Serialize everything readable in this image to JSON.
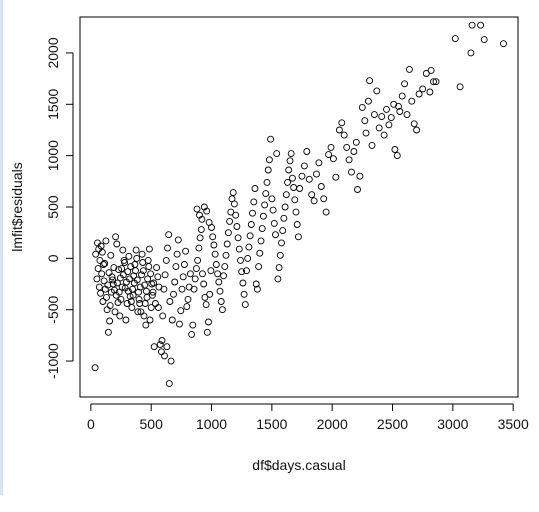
{
  "chart_data": {
    "type": "scatter",
    "title": "",
    "xlabel": "df$days.casual",
    "ylabel": "lmfit$residuals",
    "xlim": [
      -90,
      3540
    ],
    "ylim": [
      -1350,
      2350
    ],
    "xticks": [
      0,
      500,
      1000,
      1500,
      2000,
      2500,
      3000,
      3500
    ],
    "yticks": [
      -1000,
      -500,
      0,
      500,
      1000,
      1500,
      2000
    ],
    "marker": "open-circle",
    "grid": false,
    "points": [
      [
        35,
        -1065
      ],
      [
        50,
        -200
      ],
      [
        60,
        -100
      ],
      [
        70,
        -280
      ],
      [
        80,
        -340
      ],
      [
        90,
        -150
      ],
      [
        100,
        -420
      ],
      [
        110,
        -220
      ],
      [
        115,
        -50
      ],
      [
        120,
        -300
      ],
      [
        130,
        -380
      ],
      [
        140,
        -260
      ],
      [
        150,
        -140
      ],
      [
        160,
        -460
      ],
      [
        170,
        -330
      ],
      [
        180,
        -210
      ],
      [
        190,
        -90
      ],
      [
        200,
        -520
      ],
      [
        210,
        -360
      ],
      [
        220,
        -240
      ],
      [
        230,
        -110
      ],
      [
        240,
        -560
      ],
      [
        250,
        -400
      ],
      [
        260,
        -280
      ],
      [
        270,
        -160
      ],
      [
        280,
        -40
      ],
      [
        290,
        -600
      ],
      [
        300,
        -440
      ],
      [
        310,
        -320
      ],
      [
        320,
        -200
      ],
      [
        330,
        -80
      ],
      [
        340,
        -480
      ],
      [
        350,
        -360
      ],
      [
        360,
        -240
      ],
      [
        370,
        -120
      ],
      [
        380,
        0
      ],
      [
        390,
        -520
      ],
      [
        400,
        -400
      ],
      [
        410,
        -280
      ],
      [
        420,
        -160
      ],
      [
        430,
        -40
      ],
      [
        440,
        -560
      ],
      [
        450,
        -440
      ],
      [
        460,
        -320
      ],
      [
        470,
        -200
      ],
      [
        480,
        -80
      ],
      [
        490,
        -600
      ],
      [
        500,
        -480
      ],
      [
        510,
        -360
      ],
      [
        520,
        -240
      ],
      [
        40,
        40
      ],
      [
        55,
        150
      ],
      [
        65,
        90
      ],
      [
        75,
        -20
      ],
      [
        85,
        120
      ],
      [
        95,
        60
      ],
      [
        105,
        -60
      ],
      [
        125,
        170
      ],
      [
        135,
        -500
      ],
      [
        145,
        -720
      ],
      [
        155,
        -610
      ],
      [
        165,
        30
      ],
      [
        175,
        -180
      ],
      [
        185,
        -250
      ],
      [
        195,
        -310
      ],
      [
        205,
        210
      ],
      [
        215,
        140
      ],
      [
        225,
        -430
      ],
      [
        235,
        -330
      ],
      [
        245,
        -190
      ],
      [
        255,
        -100
      ],
      [
        265,
        80
      ],
      [
        275,
        -20
      ],
      [
        285,
        -290
      ],
      [
        295,
        -230
      ],
      [
        305,
        -130
      ],
      [
        315,
        20
      ],
      [
        325,
        -370
      ],
      [
        335,
        -420
      ],
      [
        345,
        -300
      ],
      [
        355,
        -170
      ],
      [
        365,
        -60
      ],
      [
        375,
        80
      ],
      [
        385,
        -210
      ],
      [
        395,
        -330
      ],
      [
        405,
        -440
      ],
      [
        415,
        -520
      ],
      [
        425,
        40
      ],
      [
        435,
        -120
      ],
      [
        445,
        -260
      ],
      [
        455,
        -650
      ],
      [
        465,
        -380
      ],
      [
        475,
        -20
      ],
      [
        485,
        90
      ],
      [
        495,
        -150
      ],
      [
        505,
        -250
      ],
      [
        515,
        -330
      ],
      [
        525,
        -860
      ],
      [
        535,
        -440
      ],
      [
        545,
        -90
      ],
      [
        555,
        -180
      ],
      [
        565,
        -280
      ],
      [
        575,
        -840
      ],
      [
        585,
        -910
      ],
      [
        595,
        -560
      ],
      [
        605,
        -300
      ],
      [
        615,
        -160
      ],
      [
        625,
        -20
      ],
      [
        635,
        100
      ],
      [
        645,
        230
      ],
      [
        655,
        -420
      ],
      [
        665,
        -1000
      ],
      [
        675,
        -600
      ],
      [
        685,
        -350
      ],
      [
        695,
        -230
      ],
      [
        705,
        -80
      ],
      [
        715,
        40
      ],
      [
        725,
        180
      ],
      [
        735,
        -640
      ],
      [
        745,
        -510
      ],
      [
        755,
        -300
      ],
      [
        765,
        -180
      ],
      [
        775,
        -60
      ],
      [
        785,
        70
      ],
      [
        795,
        -470
      ],
      [
        805,
        -400
      ],
      [
        815,
        -280
      ],
      [
        825,
        -150
      ],
      [
        835,
        -740
      ],
      [
        845,
        -650
      ],
      [
        855,
        -300
      ],
      [
        865,
        -200
      ],
      [
        875,
        -100
      ],
      [
        885,
        -20
      ],
      [
        895,
        100
      ],
      [
        905,
        200
      ],
      [
        915,
        280
      ],
      [
        925,
        -150
      ],
      [
        935,
        -250
      ],
      [
        945,
        -380
      ],
      [
        955,
        -450
      ],
      [
        965,
        -720
      ],
      [
        975,
        -620
      ],
      [
        985,
        -350
      ],
      [
        995,
        -120
      ],
      [
        590,
        -800
      ],
      [
        610,
        -950
      ],
      [
        630,
        -860
      ],
      [
        650,
        -1220
      ],
      [
        560,
        -480
      ],
      [
        880,
        480
      ],
      [
        900,
        420
      ],
      [
        920,
        380
      ],
      [
        940,
        500
      ],
      [
        960,
        460
      ],
      [
        980,
        350
      ],
      [
        1000,
        300
      ],
      [
        1010,
        210
      ],
      [
        1020,
        130
      ],
      [
        1030,
        40
      ],
      [
        1040,
        -60
      ],
      [
        1050,
        -150
      ],
      [
        1060,
        -230
      ],
      [
        1070,
        -320
      ],
      [
        1080,
        -420
      ],
      [
        1090,
        -500
      ],
      [
        1100,
        -170
      ],
      [
        1110,
        -80
      ],
      [
        1120,
        30
      ],
      [
        1130,
        140
      ],
      [
        1140,
        250
      ],
      [
        1150,
        360
      ],
      [
        1160,
        450
      ],
      [
        1170,
        580
      ],
      [
        1180,
        640
      ],
      [
        1190,
        530
      ],
      [
        1200,
        420
      ],
      [
        1210,
        310
      ],
      [
        1220,
        200
      ],
      [
        1230,
        90
      ],
      [
        1240,
        -20
      ],
      [
        1250,
        -130
      ],
      [
        1260,
        -240
      ],
      [
        1270,
        -350
      ],
      [
        1280,
        -450
      ],
      [
        1290,
        -120
      ],
      [
        1300,
        0
      ],
      [
        1310,
        110
      ],
      [
        1320,
        220
      ],
      [
        1330,
        330
      ],
      [
        1340,
        440
      ],
      [
        1350,
        550
      ],
      [
        1360,
        680
      ],
      [
        1370,
        -250
      ],
      [
        1380,
        -300
      ],
      [
        1390,
        -80
      ],
      [
        1400,
        50
      ],
      [
        1410,
        170
      ],
      [
        1420,
        290
      ],
      [
        1430,
        410
      ],
      [
        1440,
        520
      ],
      [
        1450,
        630
      ],
      [
        1460,
        740
      ],
      [
        1470,
        860
      ],
      [
        1480,
        960
      ],
      [
        1490,
        1160
      ],
      [
        1500,
        580
      ],
      [
        1510,
        470
      ],
      [
        1520,
        340
      ],
      [
        1530,
        230
      ],
      [
        1540,
        1020
      ],
      [
        1550,
        -200
      ],
      [
        1560,
        -90
      ],
      [
        1570,
        30
      ],
      [
        1580,
        150
      ],
      [
        1590,
        270
      ],
      [
        1600,
        390
      ],
      [
        1610,
        500
      ],
      [
        1620,
        620
      ],
      [
        1630,
        740
      ],
      [
        1640,
        860
      ],
      [
        1650,
        950
      ],
      [
        1660,
        1020
      ],
      [
        1670,
        780
      ],
      [
        1680,
        690
      ],
      [
        1690,
        570
      ],
      [
        1700,
        450
      ],
      [
        1710,
        330
      ],
      [
        1720,
        210
      ],
      [
        1730,
        680
      ],
      [
        1750,
        800
      ],
      [
        1770,
        900
      ],
      [
        1790,
        1040
      ],
      [
        1810,
        770
      ],
      [
        1830,
        620
      ],
      [
        1850,
        560
      ],
      [
        1870,
        820
      ],
      [
        1890,
        930
      ],
      [
        1910,
        700
      ],
      [
        1930,
        580
      ],
      [
        1950,
        450
      ],
      [
        1970,
        1010
      ],
      [
        1990,
        1080
      ],
      [
        2010,
        970
      ],
      [
        2030,
        790
      ],
      [
        2060,
        1250
      ],
      [
        2080,
        1320
      ],
      [
        2100,
        1200
      ],
      [
        2120,
        1080
      ],
      [
        2140,
        960
      ],
      [
        2160,
        840
      ],
      [
        2180,
        1040
      ],
      [
        2200,
        1130
      ],
      [
        2210,
        670
      ],
      [
        2230,
        800
      ],
      [
        2250,
        1470
      ],
      [
        2270,
        1340
      ],
      [
        2280,
        1220
      ],
      [
        2300,
        1530
      ],
      [
        2310,
        1730
      ],
      [
        2330,
        1100
      ],
      [
        2350,
        1400
      ],
      [
        2370,
        1630
      ],
      [
        2390,
        1270
      ],
      [
        2410,
        1380
      ],
      [
        2430,
        1200
      ],
      [
        2450,
        1450
      ],
      [
        2470,
        1300
      ],
      [
        2490,
        1370
      ],
      [
        2510,
        1500
      ],
      [
        2520,
        1060
      ],
      [
        2540,
        1000
      ],
      [
        2560,
        1430
      ],
      [
        2580,
        1580
      ],
      [
        2600,
        1700
      ],
      [
        2620,
        1400
      ],
      [
        2640,
        1840
      ],
      [
        2660,
        1530
      ],
      [
        2680,
        1310
      ],
      [
        2700,
        1250
      ],
      [
        2720,
        1600
      ],
      [
        2750,
        1650
      ],
      [
        2780,
        1800
      ],
      [
        2810,
        1620
      ],
      [
        2840,
        1720
      ],
      [
        2860,
        1720
      ],
      [
        3020,
        2140
      ],
      [
        3060,
        1670
      ],
      [
        3150,
        2000
      ],
      [
        3160,
        2270
      ],
      [
        3230,
        2270
      ],
      [
        3260,
        2130
      ],
      [
        3420,
        2090
      ],
      [
        2820,
        1830
      ],
      [
        2550,
        1480
      ]
    ]
  }
}
